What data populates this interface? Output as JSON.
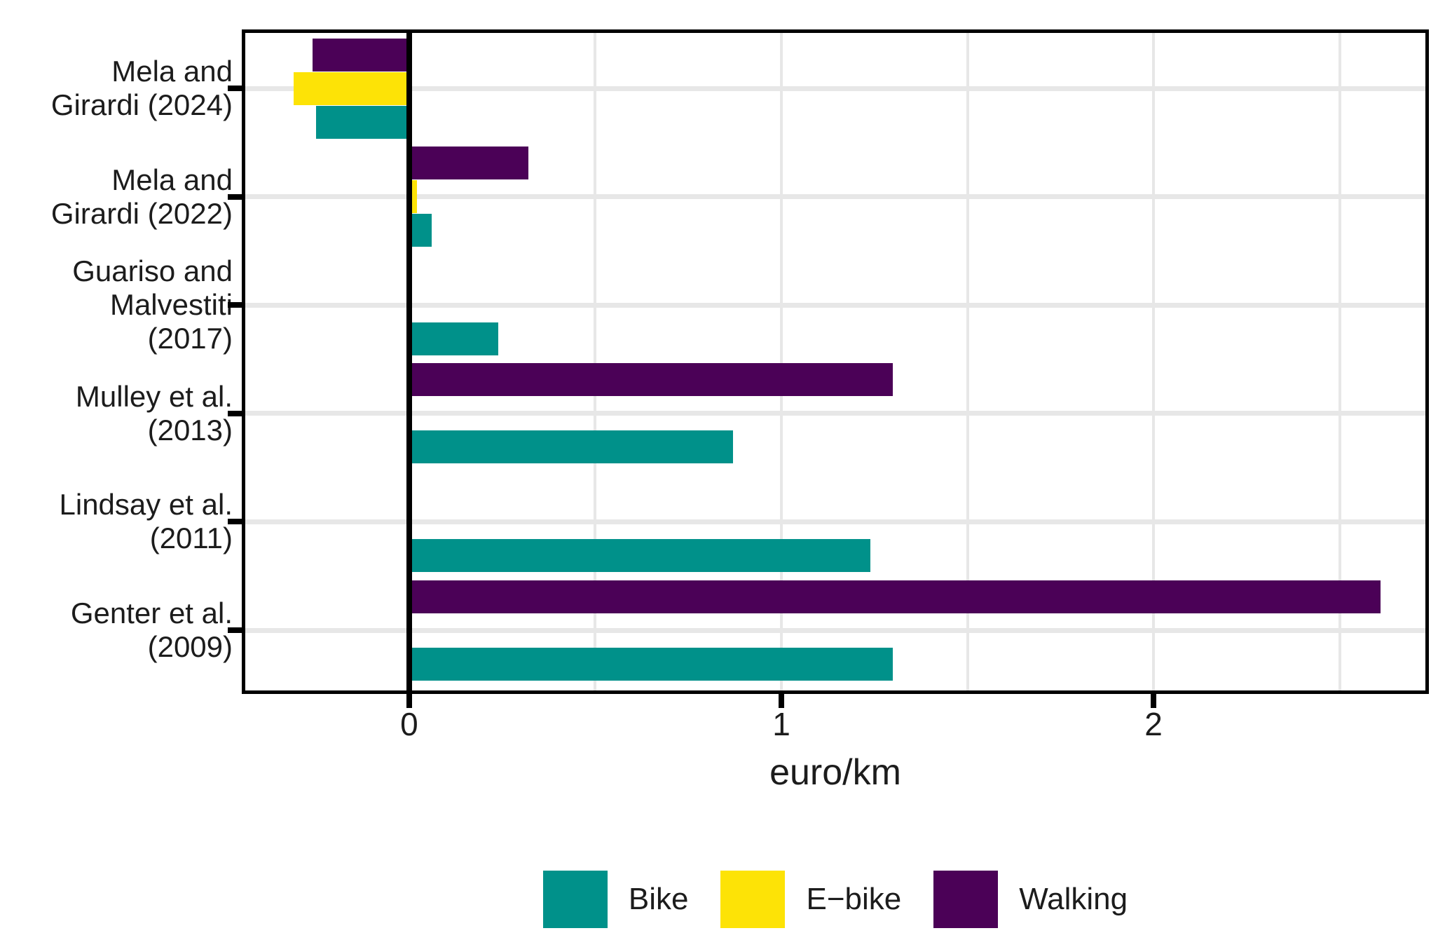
{
  "chart_data": {
    "type": "bar",
    "orientation": "horizontal",
    "title": "",
    "xlabel": "euro/km",
    "xlim": [
      -0.45,
      2.74
    ],
    "x_ticks": [
      {
        "value": 0,
        "label": "0"
      },
      {
        "value": 1,
        "label": "1"
      },
      {
        "value": 2,
        "label": "2"
      }
    ],
    "x_gridlines": [
      0.5,
      1,
      1.5,
      2,
      2.5
    ],
    "grid_on": true,
    "legend_position": "bottom",
    "categories": [
      "Mela and Girardi (2024)",
      "Mela and Girardi (2022)",
      "Guariso and Malvestiti (2017)",
      "Mulley et al. (2013)",
      "Lindsay et al. (2011)",
      "Genter et al. (2009)"
    ],
    "category_label_lines": [
      "Mela and\nGirardi (2024)",
      "Mela and\nGirardi (2022)",
      "Guariso and\nMalvestiti\n(2017)",
      "Mulley et al.\n(2013)",
      "Lindsay et al.\n(2011)",
      "Genter et al.\n(2009)"
    ],
    "series": [
      {
        "name": "Bike",
        "color": "#00918A",
        "slot": 2,
        "values": [
          -0.25,
          0.06,
          0.24,
          0.87,
          1.24,
          1.3
        ]
      },
      {
        "name": "E−bike",
        "color": "#FDE306",
        "slot": 1,
        "values": [
          -0.31,
          0.02,
          null,
          null,
          null,
          null
        ]
      },
      {
        "name": "Walking",
        "color": "#4B0157",
        "slot": 0,
        "values": [
          -0.26,
          0.32,
          null,
          1.3,
          null,
          2.61
        ]
      }
    ],
    "colors": {
      "grid": "#E7E7E7",
      "axis": "#000000",
      "text": "#1C1C1C",
      "background": "#FFFFFF"
    }
  }
}
